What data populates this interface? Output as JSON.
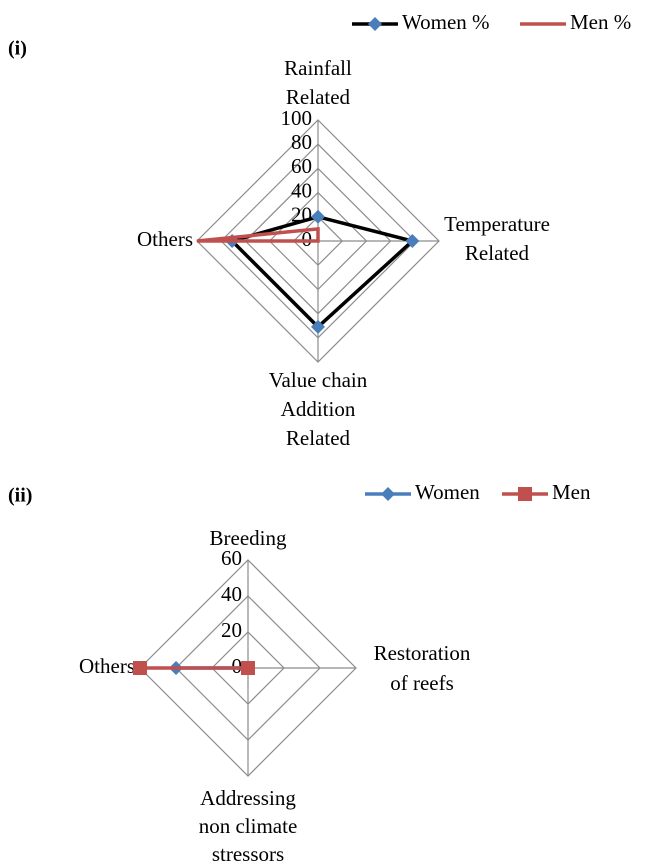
{
  "chart_data": [
    {
      "type": "radar",
      "panel_label": "(i)",
      "categories": [
        [
          "Rainfall",
          "Related"
        ],
        [
          "Temperature",
          "Related"
        ],
        [
          "Value chain",
          "Addition",
          "Related"
        ],
        [
          "Others"
        ]
      ],
      "rlim": [
        0,
        100
      ],
      "rticks": [
        0,
        20,
        40,
        60,
        80,
        100
      ],
      "grid": true,
      "grid_color": "#8c8c8c",
      "series": [
        {
          "name": "Women %",
          "color": "#000000",
          "marker": "diamond",
          "marker_color": "#4a7ebb",
          "values": [
            20,
            78,
            71,
            71
          ]
        },
        {
          "name": "Men %",
          "color": "#c0504d",
          "marker": "none",
          "marker_color": "#c0504d",
          "values": [
            10,
            0,
            0,
            100
          ]
        }
      ]
    },
    {
      "type": "radar",
      "panel_label": "(ii)",
      "categories": [
        [
          "Breeding"
        ],
        [
          "Restoration",
          "of  reefs"
        ],
        [
          "Addressing",
          "non climate",
          "stressors"
        ],
        [
          "Others"
        ]
      ],
      "rlim": [
        0,
        60
      ],
      "rticks": [
        0,
        20,
        40,
        60
      ],
      "grid": true,
      "grid_color": "#8c8c8c",
      "series": [
        {
          "name": "Women",
          "color": "#4a7ebb",
          "marker": "diamond",
          "marker_color": "#4a7ebb",
          "values": [
            0,
            0,
            0,
            40
          ]
        },
        {
          "name": "Men",
          "color": "#c0504d",
          "marker": "square",
          "marker_color": "#c0504d",
          "values": [
            0,
            0,
            0,
            60
          ]
        }
      ]
    }
  ]
}
